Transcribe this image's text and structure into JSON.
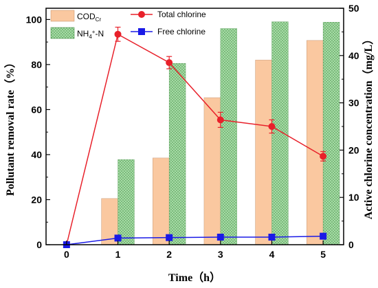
{
  "chart_data": {
    "type": "bar",
    "categories": [
      "0",
      "1",
      "2",
      "3",
      "4",
      "5"
    ],
    "x": [
      0,
      1,
      2,
      3,
      4,
      5
    ],
    "xlabel": "Time（h）",
    "ylabel_left": "Pollutant removal rate（%）",
    "ylabel_right": "Active chlorine concentration（mg/L）",
    "ylim_left": [
      0,
      105
    ],
    "ylim_right": [
      0,
      50
    ],
    "yticks_left": [
      "0",
      "20",
      "40",
      "60",
      "80",
      "100"
    ],
    "yticks_right": [
      "0",
      "10",
      "20",
      "30",
      "40",
      "50"
    ],
    "legend_position": "top-center",
    "bar_series": [
      {
        "name": "COD",
        "name_sub": "Cr",
        "axis": "left",
        "color": "#FAC8A0",
        "values": [
          null,
          20.5,
          38.5,
          65.3,
          82.0,
          90.7
        ]
      },
      {
        "name": "NH",
        "name_sub": "4",
        "name_sup": "+",
        "name_suffix": "-N",
        "axis": "left",
        "color": "#9FD99F",
        "pattern": "dots",
        "values": [
          null,
          37.8,
          80.5,
          96.0,
          99.0,
          98.8
        ]
      }
    ],
    "line_series": [
      {
        "name": "Total chlorine",
        "axis": "right",
        "color": "#E8202A",
        "marker": "circle",
        "values": [
          0,
          44.5,
          38.5,
          26.4,
          25.0,
          18.7
        ],
        "error": [
          0,
          1.5,
          1.3,
          1.6,
          1.4,
          1.0
        ]
      },
      {
        "name": "Free chlorine",
        "axis": "right",
        "color": "#1A1AE6",
        "marker": "square",
        "values": [
          0,
          1.4,
          1.5,
          1.6,
          1.6,
          1.8
        ]
      }
    ]
  }
}
